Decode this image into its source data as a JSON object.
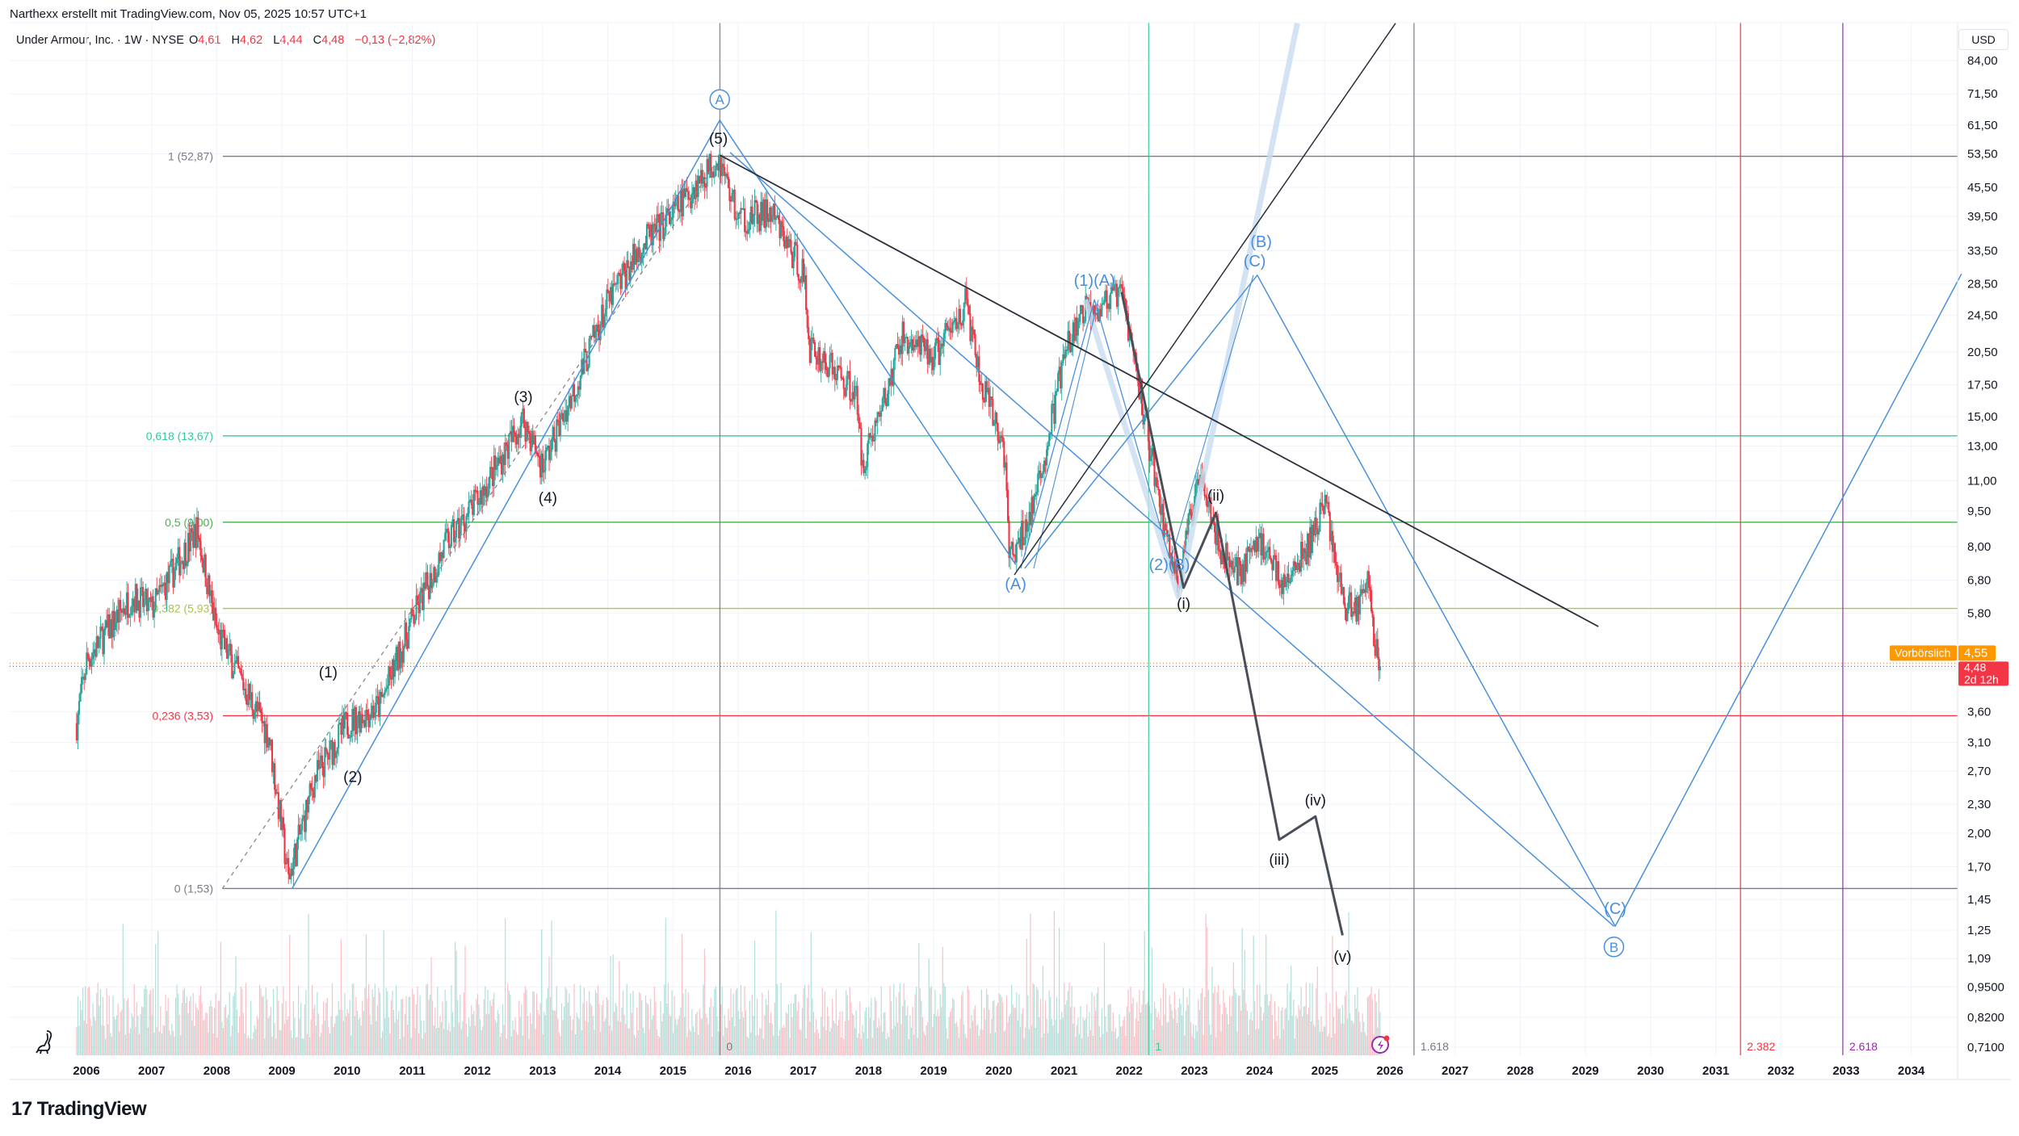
{
  "header": {
    "attribution": "Narthexx erstellt mit TradingView.com, Nov 05, 2025 10:57 UTC+1",
    "symbol": "Under Armour, Inc. · 1W · NYSE",
    "o_label": "O",
    "o": "4,61",
    "h_label": "H",
    "h": "4,62",
    "l_label": "L",
    "l": "4,44",
    "c_label": "C",
    "c": "4,48",
    "change": "−0,13 (−2,82%)"
  },
  "footer": {
    "brand": "TradingView",
    "logo_mark": "17"
  },
  "chart_data": {
    "type": "candlestick",
    "scale": "log",
    "currency": "USD",
    "grid": true,
    "price_ticks": [
      "84,00",
      "71,50",
      "61,50",
      "53,50",
      "45,50",
      "39,50",
      "33,50",
      "28,50",
      "24,50",
      "20,50",
      "17,50",
      "15,00",
      "13,00",
      "11,00",
      "9,50",
      "8,00",
      "6,80",
      "5,80",
      "3,60",
      "3,10",
      "2,70",
      "2,30",
      "2,00",
      "1,70",
      "1,45",
      "1,25",
      "1,09",
      "0,9500",
      "0,8200",
      "0,7100"
    ],
    "year_ticks": [
      "2006",
      "2007",
      "2008",
      "2009",
      "2010",
      "2011",
      "2012",
      "2013",
      "2014",
      "2015",
      "2016",
      "2017",
      "2018",
      "2019",
      "2020",
      "2021",
      "2022",
      "2023",
      "2024",
      "2025",
      "2026",
      "2027",
      "2028",
      "2029",
      "2030",
      "2031",
      "2032",
      "2033",
      "2034"
    ],
    "x_range": [
      2005.2,
      2035.0
    ],
    "y_range": [
      0.71,
      84
    ],
    "price_path_approx": [
      [
        2005.85,
        3.4
      ],
      [
        2006.0,
        4.6
      ],
      [
        2006.7,
        6.3
      ],
      [
        2007.0,
        5.9
      ],
      [
        2007.7,
        8.7
      ],
      [
        2008.0,
        5.3
      ],
      [
        2008.8,
        3.2
      ],
      [
        2009.1,
        1.6
      ],
      [
        2009.5,
        2.6
      ],
      [
        2010.0,
        3.4
      ],
      [
        2010.5,
        3.7
      ],
      [
        2011.0,
        5.6
      ],
      [
        2011.5,
        8.0
      ],
      [
        2012.0,
        10.0
      ],
      [
        2012.7,
        14.8
      ],
      [
        2013.0,
        11.8
      ],
      [
        2013.5,
        17.3
      ],
      [
        2014.0,
        26.0
      ],
      [
        2014.5,
        34.0
      ],
      [
        2015.0,
        40.0
      ],
      [
        2015.7,
        52.9
      ],
      [
        2016.0,
        39.0
      ],
      [
        2016.5,
        40.0
      ],
      [
        2017.0,
        30.0
      ],
      [
        2017.1,
        21.0
      ],
      [
        2017.8,
        17.0
      ],
      [
        2017.9,
        12.0
      ],
      [
        2018.3,
        17.0
      ],
      [
        2018.5,
        22.0
      ],
      [
        2019.0,
        20.0
      ],
      [
        2019.5,
        26.0
      ],
      [
        2019.7,
        18.0
      ],
      [
        2020.1,
        12.5
      ],
      [
        2020.15,
        7.5
      ],
      [
        2020.3,
        8.0
      ],
      [
        2020.6,
        10.5
      ],
      [
        2021.0,
        20.0
      ],
      [
        2021.3,
        25.0
      ],
      [
        2021.9,
        27.0
      ],
      [
        2022.2,
        16.0
      ],
      [
        2022.5,
        9.3
      ],
      [
        2022.75,
        6.6
      ],
      [
        2023.1,
        12.0
      ],
      [
        2023.4,
        7.8
      ],
      [
        2023.7,
        7.1
      ],
      [
        2024.0,
        8.3
      ],
      [
        2024.4,
        6.6
      ],
      [
        2024.8,
        8.3
      ],
      [
        2025.0,
        10.0
      ],
      [
        2025.3,
        6.0
      ],
      [
        2025.5,
        6.0
      ],
      [
        2025.7,
        7.0
      ],
      [
        2025.75,
        5.0
      ],
      [
        2025.85,
        4.48
      ]
    ],
    "last_close": 4.48,
    "fib_retracement": [
      {
        "label": "1 (52,87)",
        "price": 52.87,
        "color": "#787b86"
      },
      {
        "label": "0,618 (13,67)",
        "price": 13.67,
        "color": "#2ecc9a"
      },
      {
        "label": "0,5 (9,00)",
        "price": 9.0,
        "color": "#4caf50"
      },
      {
        "label": "0,382 (5,93)",
        "price": 5.93,
        "color": "#a8c93a"
      },
      {
        "label": "0,236 (3,53)",
        "price": 3.53,
        "color": "#f23645"
      },
      {
        "label": "0 (1,53)",
        "price": 1.53,
        "color": "#787b86"
      }
    ],
    "fib_time_zones": [
      {
        "label": "0",
        "year": 2015.72,
        "color": "#787b86"
      },
      {
        "label": "1",
        "year": 2022.3,
        "color": "#2ecc9a"
      },
      {
        "label": "1.618",
        "year": 2026.37,
        "color": "#787b86"
      },
      {
        "label": "2.382",
        "year": 2031.38,
        "color": "#f23645"
      },
      {
        "label": "2.618",
        "year": 2032.95,
        "color": "#9c27b0"
      }
    ],
    "wave_labels_black": [
      "(1)",
      "(2)",
      "(3)",
      "(4)",
      "(5)",
      "(i)",
      "(ii)",
      "(iii)",
      "(iv)",
      "(v)"
    ],
    "wave_labels_blue": [
      "(A)",
      "(1)(A)",
      "(B)",
      "(C)",
      "(2)(B)",
      "(C)"
    ],
    "circled_labels": [
      "A",
      "B"
    ],
    "price_tags": [
      {
        "label": "Vorbörslich",
        "value": "4,55",
        "color": "#ff9800"
      },
      {
        "label": "",
        "value": "4,48",
        "sub": "2d 12h",
        "color": "#f23645"
      }
    ],
    "colors": {
      "up": "#26a69a",
      "down": "#f23645",
      "waves_blue": "#4a90d9",
      "waves_black": "#2a2e39"
    }
  }
}
